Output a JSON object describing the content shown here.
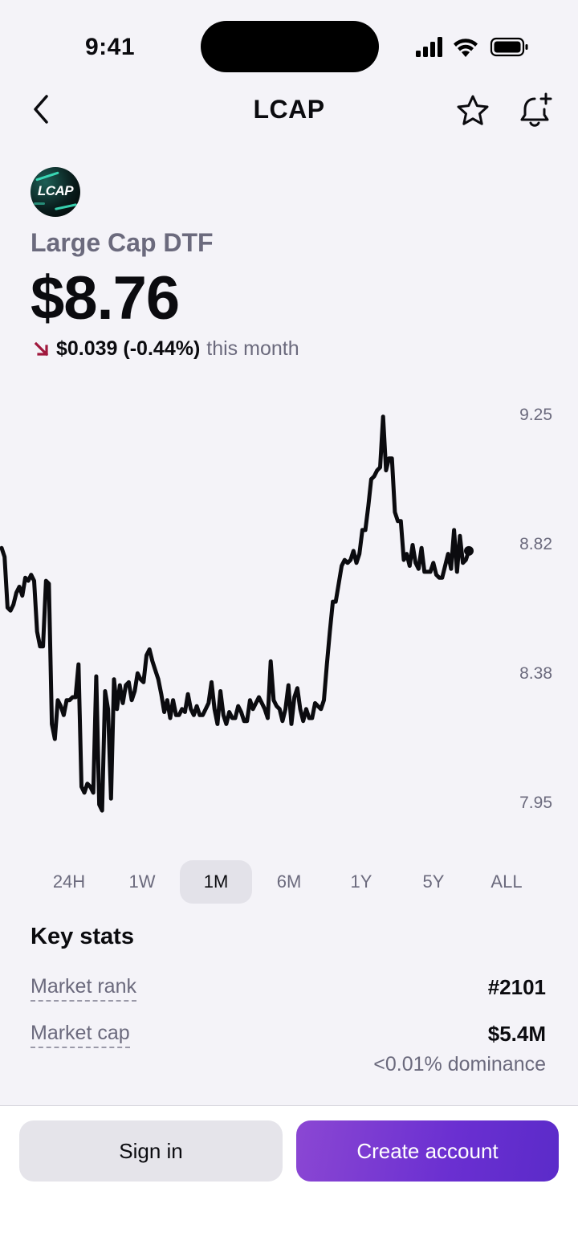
{
  "status_bar": {
    "time": "9:41"
  },
  "nav": {
    "title": "LCAP",
    "icons": [
      "chevron-left-icon",
      "star-icon",
      "bell-plus-icon"
    ]
  },
  "asset": {
    "logo_text": "LCAP",
    "name": "Large Cap DTF",
    "price": "$8.76",
    "change_value": "$0.039 (-0.44%)",
    "change_period": "this month",
    "change_direction": "down",
    "change_color": "#a0183d"
  },
  "chart_data": {
    "type": "line",
    "y_ticks": [
      "9.25",
      "8.82",
      "8.38",
      "7.95"
    ],
    "ylim": [
      7.95,
      9.25
    ],
    "grid": false,
    "line_color": "#0b0b0f",
    "values": [
      8.8,
      8.77,
      8.6,
      8.59,
      8.61,
      8.65,
      8.67,
      8.64,
      8.7,
      8.69,
      8.71,
      8.69,
      8.52,
      8.47,
      8.47,
      8.69,
      8.68,
      8.21,
      8.16,
      8.29,
      8.27,
      8.24,
      8.29,
      8.29,
      8.3,
      8.3,
      8.41,
      8.0,
      7.98,
      8.01,
      8.0,
      7.98,
      8.37,
      7.94,
      7.92,
      8.32,
      8.26,
      7.96,
      8.36,
      8.26,
      8.34,
      8.28,
      8.34,
      8.35,
      8.29,
      8.32,
      8.38,
      8.36,
      8.35,
      8.44,
      8.46,
      8.42,
      8.39,
      8.36,
      8.31,
      8.25,
      8.29,
      8.23,
      8.29,
      8.24,
      8.24,
      8.26,
      8.25,
      8.31,
      8.26,
      8.24,
      8.27,
      8.24,
      8.24,
      8.26,
      8.28,
      8.35,
      8.26,
      8.21,
      8.32,
      8.24,
      8.21,
      8.25,
      8.23,
      8.23,
      8.27,
      8.25,
      8.22,
      8.22,
      8.29,
      8.26,
      8.28,
      8.3,
      8.28,
      8.26,
      8.23,
      8.42,
      8.29,
      8.27,
      8.26,
      8.22,
      8.26,
      8.34,
      8.21,
      8.3,
      8.33,
      8.26,
      8.22,
      8.26,
      8.23,
      8.23,
      8.28,
      8.27,
      8.26,
      8.29,
      8.41,
      8.52,
      8.62,
      8.62,
      8.68,
      8.74,
      8.76,
      8.75,
      8.76,
      8.79,
      8.75,
      8.78,
      8.86,
      8.86,
      8.94,
      9.03,
      9.04,
      9.06,
      9.07,
      9.24,
      9.06,
      9.1,
      9.1,
      8.92,
      8.89,
      8.89,
      8.76,
      8.78,
      8.74,
      8.81,
      8.75,
      8.73,
      8.8,
      8.72,
      8.72,
      8.72,
      8.75,
      8.71,
      8.7,
      8.7,
      8.74,
      8.78,
      8.73,
      8.86,
      8.72,
      8.84,
      8.75,
      8.76,
      8.79
    ]
  },
  "range_tabs": {
    "items": [
      "24H",
      "1W",
      "1M",
      "6M",
      "1Y",
      "5Y",
      "ALL"
    ],
    "active": "1M"
  },
  "key_stats": {
    "title": "Key stats",
    "market_rank_label": "Market rank",
    "market_rank_value": "#2101",
    "market_cap_label": "Market cap",
    "market_cap_value": "$5.4M",
    "market_cap_sub": "<0.01% dominance"
  },
  "bottom": {
    "sign_in": "Sign in",
    "create_account": "Create account",
    "accent": "#6a2fd1"
  }
}
